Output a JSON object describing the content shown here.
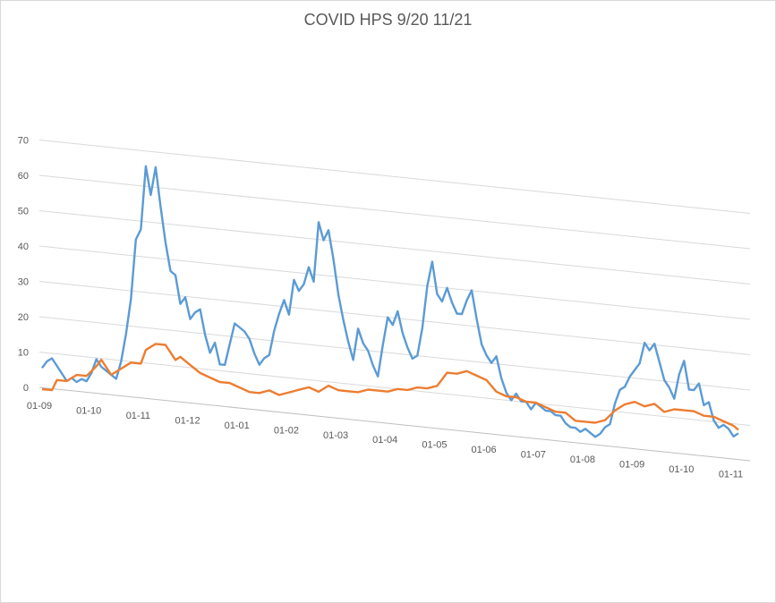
{
  "chart_data": {
    "type": "line",
    "title": "COVID  HPS 9/20 11/21",
    "xlabel": "",
    "ylabel": "",
    "ylim": [
      0,
      70
    ],
    "y_ticks": [
      "0",
      "10",
      "20",
      "30",
      "40",
      "50",
      "60",
      "70"
    ],
    "x_ticks": [
      "01-09",
      "01-10",
      "01-11",
      "01-12",
      "01-01",
      "01-02",
      "01-03",
      "01-04",
      "01-05",
      "01-06",
      "01-07",
      "01-08",
      "01-09",
      "01-10",
      "01-11"
    ],
    "x_range": [
      0,
      14.1
    ],
    "grid": true,
    "legend": "none",
    "colors": {
      "series_1": "#5b9bd5",
      "series_2": "#ed7d31",
      "grid": "#d9d9d9",
      "text": "#595959"
    },
    "series": [
      {
        "color": "#5b9bd5",
        "points": [
          [
            0,
            6
          ],
          [
            0.1,
            8
          ],
          [
            0.2,
            9
          ],
          [
            0.3,
            7
          ],
          [
            0.4,
            5
          ],
          [
            0.5,
            3
          ],
          [
            0.6,
            4
          ],
          [
            0.7,
            3
          ],
          [
            0.8,
            4
          ],
          [
            0.9,
            3.5
          ],
          [
            1.0,
            6
          ],
          [
            1.1,
            10
          ],
          [
            1.2,
            8
          ],
          [
            1.3,
            7
          ],
          [
            1.4,
            6
          ],
          [
            1.5,
            5
          ],
          [
            1.6,
            10
          ],
          [
            1.7,
            18
          ],
          [
            1.8,
            28
          ],
          [
            1.9,
            45
          ],
          [
            2.0,
            48
          ],
          [
            2.1,
            66
          ],
          [
            2.2,
            58
          ],
          [
            2.3,
            66
          ],
          [
            2.4,
            55
          ],
          [
            2.5,
            45
          ],
          [
            2.6,
            37
          ],
          [
            2.7,
            36
          ],
          [
            2.8,
            28
          ],
          [
            2.9,
            30
          ],
          [
            3.0,
            24
          ],
          [
            3.1,
            26
          ],
          [
            3.2,
            27
          ],
          [
            3.3,
            20
          ],
          [
            3.4,
            15
          ],
          [
            3.5,
            18
          ],
          [
            3.6,
            12
          ],
          [
            3.7,
            12
          ],
          [
            3.8,
            18
          ],
          [
            3.9,
            24
          ],
          [
            4.0,
            23
          ],
          [
            4.1,
            22
          ],
          [
            4.2,
            20
          ],
          [
            4.3,
            16
          ],
          [
            4.4,
            13
          ],
          [
            4.5,
            15
          ],
          [
            4.6,
            16
          ],
          [
            4.7,
            23
          ],
          [
            4.8,
            28
          ],
          [
            4.9,
            32
          ],
          [
            5.0,
            28
          ],
          [
            5.1,
            38
          ],
          [
            5.2,
            35
          ],
          [
            5.3,
            37
          ],
          [
            5.4,
            42
          ],
          [
            5.5,
            38
          ],
          [
            5.6,
            55
          ],
          [
            5.7,
            50
          ],
          [
            5.8,
            53
          ],
          [
            5.9,
            45
          ],
          [
            6.0,
            35
          ],
          [
            6.1,
            28
          ],
          [
            6.2,
            22
          ],
          [
            6.3,
            17
          ],
          [
            6.4,
            26
          ],
          [
            6.5,
            22
          ],
          [
            6.6,
            20
          ],
          [
            6.7,
            16
          ],
          [
            6.8,
            13
          ],
          [
            6.9,
            22
          ],
          [
            7.0,
            30
          ],
          [
            7.1,
            28
          ],
          [
            7.2,
            32
          ],
          [
            7.3,
            26
          ],
          [
            7.4,
            22
          ],
          [
            7.5,
            19
          ],
          [
            7.6,
            20
          ],
          [
            7.7,
            28
          ],
          [
            7.8,
            40
          ],
          [
            7.9,
            47
          ],
          [
            8.0,
            38
          ],
          [
            8.1,
            36
          ],
          [
            8.2,
            40
          ],
          [
            8.3,
            36
          ],
          [
            8.4,
            33
          ],
          [
            8.5,
            33
          ],
          [
            8.6,
            37
          ],
          [
            8.7,
            40
          ],
          [
            8.8,
            32
          ],
          [
            8.9,
            25
          ],
          [
            9.0,
            22
          ],
          [
            9.1,
            20
          ],
          [
            9.2,
            22
          ],
          [
            9.3,
            16
          ],
          [
            9.4,
            12
          ],
          [
            9.5,
            10
          ],
          [
            9.6,
            12
          ],
          [
            9.7,
            10
          ],
          [
            9.8,
            10
          ],
          [
            9.9,
            8
          ],
          [
            10.0,
            10
          ],
          [
            10.1,
            9
          ],
          [
            10.2,
            8
          ],
          [
            10.3,
            8
          ],
          [
            10.4,
            7
          ],
          [
            10.5,
            7
          ],
          [
            10.6,
            5
          ],
          [
            10.7,
            4
          ],
          [
            10.8,
            4
          ],
          [
            10.9,
            3
          ],
          [
            11.0,
            4
          ],
          [
            11.1,
            3
          ],
          [
            11.2,
            2
          ],
          [
            11.3,
            3
          ],
          [
            11.4,
            5
          ],
          [
            11.5,
            6
          ],
          [
            11.6,
            12
          ],
          [
            11.7,
            16
          ],
          [
            11.8,
            17
          ],
          [
            11.9,
            20
          ],
          [
            12.0,
            22
          ],
          [
            12.1,
            24
          ],
          [
            12.2,
            30
          ],
          [
            12.3,
            28
          ],
          [
            12.4,
            30
          ],
          [
            12.5,
            25
          ],
          [
            12.6,
            20
          ],
          [
            12.7,
            18
          ],
          [
            12.8,
            15
          ],
          [
            12.9,
            22
          ],
          [
            13.0,
            26
          ],
          [
            13.1,
            18
          ],
          [
            13.2,
            18
          ],
          [
            13.3,
            20
          ],
          [
            13.4,
            14
          ],
          [
            13.5,
            15
          ],
          [
            13.6,
            10
          ],
          [
            13.7,
            8
          ],
          [
            13.8,
            9
          ],
          [
            13.9,
            8
          ],
          [
            14.0,
            6
          ],
          [
            14.1,
            7
          ]
        ]
      },
      {
        "color": "#ed7d31",
        "points": [
          [
            0,
            0
          ],
          [
            0.2,
            0
          ],
          [
            0.3,
            3
          ],
          [
            0.5,
            3
          ],
          [
            0.7,
            5
          ],
          [
            0.9,
            5
          ],
          [
            1.1,
            8
          ],
          [
            1.2,
            10
          ],
          [
            1.3,
            8
          ],
          [
            1.4,
            6
          ],
          [
            1.5,
            7
          ],
          [
            1.7,
            9
          ],
          [
            1.8,
            10
          ],
          [
            2.0,
            10
          ],
          [
            2.1,
            14
          ],
          [
            2.3,
            16
          ],
          [
            2.5,
            16
          ],
          [
            2.6,
            14
          ],
          [
            2.7,
            12
          ],
          [
            2.8,
            13
          ],
          [
            3.0,
            11
          ],
          [
            3.2,
            9
          ],
          [
            3.4,
            8
          ],
          [
            3.6,
            7
          ],
          [
            3.8,
            7
          ],
          [
            4.0,
            6
          ],
          [
            4.2,
            5
          ],
          [
            4.4,
            5
          ],
          [
            4.6,
            6
          ],
          [
            4.8,
            5
          ],
          [
            5.0,
            6
          ],
          [
            5.2,
            7
          ],
          [
            5.4,
            8
          ],
          [
            5.6,
            7
          ],
          [
            5.8,
            9
          ],
          [
            6.0,
            8
          ],
          [
            6.2,
            8
          ],
          [
            6.4,
            8
          ],
          [
            6.6,
            9
          ],
          [
            6.8,
            9
          ],
          [
            7.0,
            9
          ],
          [
            7.2,
            10
          ],
          [
            7.4,
            10
          ],
          [
            7.6,
            11
          ],
          [
            7.8,
            11
          ],
          [
            8.0,
            12
          ],
          [
            8.2,
            16
          ],
          [
            8.4,
            16
          ],
          [
            8.6,
            17
          ],
          [
            8.8,
            16
          ],
          [
            9.0,
            15
          ],
          [
            9.2,
            12
          ],
          [
            9.4,
            11
          ],
          [
            9.6,
            11
          ],
          [
            9.8,
            10
          ],
          [
            10.0,
            10
          ],
          [
            10.2,
            9
          ],
          [
            10.4,
            8
          ],
          [
            10.6,
            8
          ],
          [
            10.8,
            6
          ],
          [
            11.0,
            6
          ],
          [
            11.2,
            6
          ],
          [
            11.4,
            7
          ],
          [
            11.6,
            10
          ],
          [
            11.8,
            12
          ],
          [
            12.0,
            13
          ],
          [
            12.2,
            12
          ],
          [
            12.4,
            13
          ],
          [
            12.6,
            11
          ],
          [
            12.8,
            12
          ],
          [
            13.0,
            12
          ],
          [
            13.2,
            12
          ],
          [
            13.4,
            11
          ],
          [
            13.6,
            11
          ],
          [
            13.8,
            10
          ],
          [
            14.0,
            9
          ],
          [
            14.1,
            8
          ]
        ]
      }
    ]
  }
}
